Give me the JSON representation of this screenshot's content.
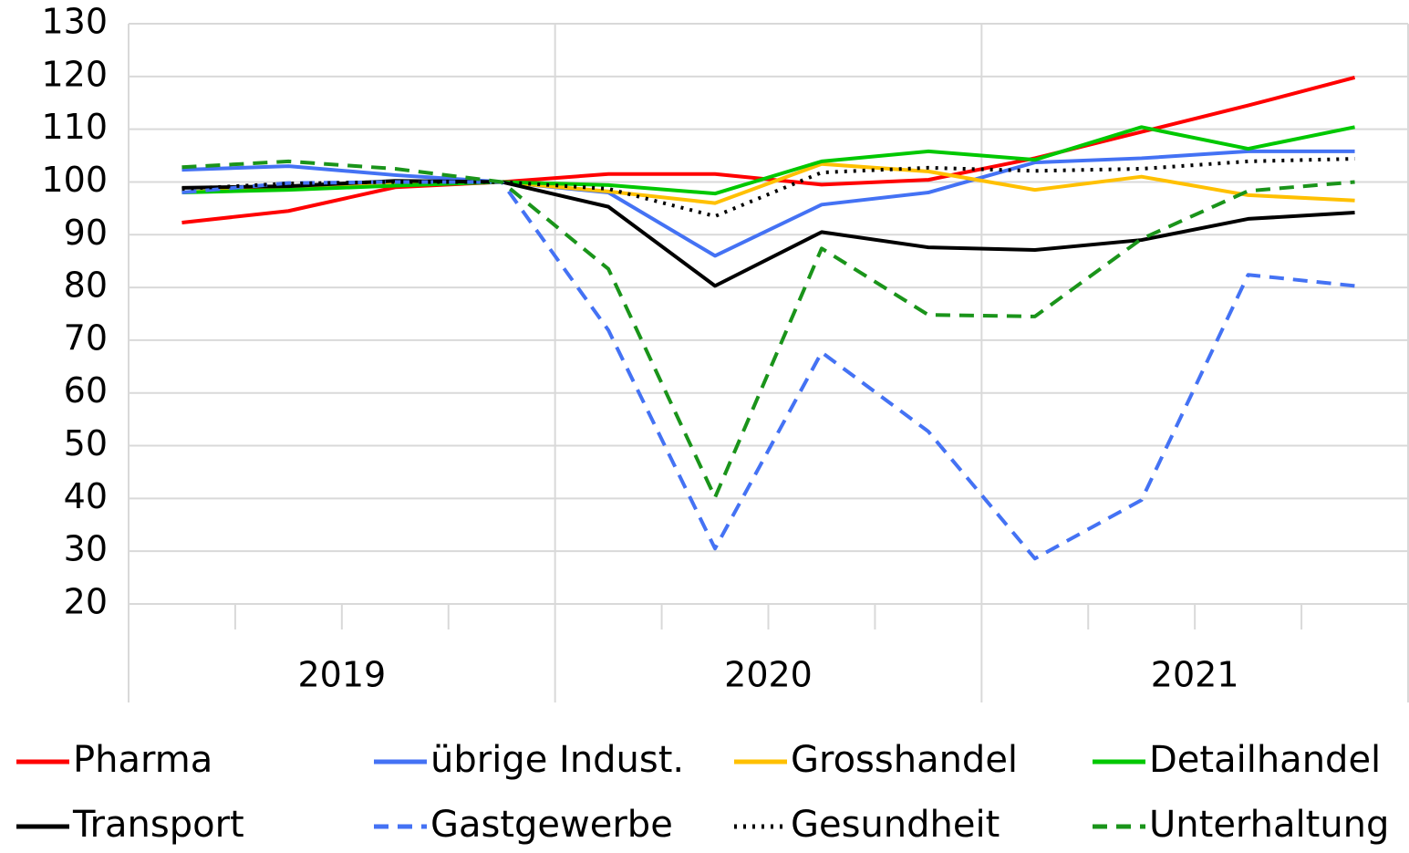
{
  "chart_data": {
    "type": "line",
    "categories": [
      null,
      null,
      null,
      null,
      null,
      null,
      null,
      null,
      null,
      null,
      null,
      null
    ],
    "x_groups": [
      "2019",
      "2020",
      "2021"
    ],
    "ylim": [
      20,
      130
    ],
    "yticks": [
      20,
      30,
      40,
      50,
      60,
      70,
      80,
      90,
      100,
      110,
      120,
      130
    ],
    "grid": true,
    "legend": "bottom",
    "series": [
      {
        "name": "Pharma",
        "color": "#ff0000",
        "dash": "solid",
        "values": [
          92.3,
          94.5,
          99,
          100,
          101.5,
          101.5,
          99.5,
          100.4,
          104.5,
          109.5,
          114.5,
          119.8
        ]
      },
      {
        "name": "übrige Indust.",
        "color": "#4472f4",
        "dash": "solid",
        "values": [
          102.3,
          103,
          101.3,
          100,
          98,
          86,
          95.7,
          98,
          103.7,
          104.5,
          105.8,
          105.8
        ]
      },
      {
        "name": "Grosshandel",
        "color": "#ffc000",
        "dash": "solid",
        "values": [
          98,
          99,
          100,
          100,
          98.2,
          96,
          103.4,
          102,
          98.5,
          101,
          97.5,
          96.5
        ]
      },
      {
        "name": "Detailhandel",
        "color": "#00c800",
        "dash": "solid",
        "values": [
          98,
          98.5,
          99.3,
          100,
          99.4,
          97.8,
          103.9,
          105.8,
          104.2,
          110.4,
          106.3,
          110.4
        ]
      },
      {
        "name": "Transport",
        "color": "#000000",
        "dash": "solid",
        "values": [
          98.9,
          99.2,
          100.2,
          100,
          95.3,
          80.3,
          90.5,
          87.6,
          87.1,
          89,
          93,
          94.2
        ]
      },
      {
        "name": "Gastgewerbe",
        "color": "#4472f4",
        "dash": "dashed",
        "values": [
          98,
          99.8,
          100,
          100,
          71.9,
          30.5,
          67.7,
          52.7,
          28.6,
          39.7,
          82.4,
          80.3
        ]
      },
      {
        "name": "Gesundheit",
        "color": "#000000",
        "dash": "dotted",
        "values": [
          98.7,
          99.7,
          100,
          100,
          98.7,
          93.5,
          101.8,
          102.7,
          102.1,
          102.5,
          103.9,
          104.4
        ]
      },
      {
        "name": "Unterhaltung",
        "color": "#1a941a",
        "dash": "dashed",
        "values": [
          102.8,
          103.9,
          102.5,
          100,
          83.5,
          40.2,
          87.4,
          74.8,
          74.5,
          89.2,
          98.3,
          100
        ]
      }
    ]
  }
}
